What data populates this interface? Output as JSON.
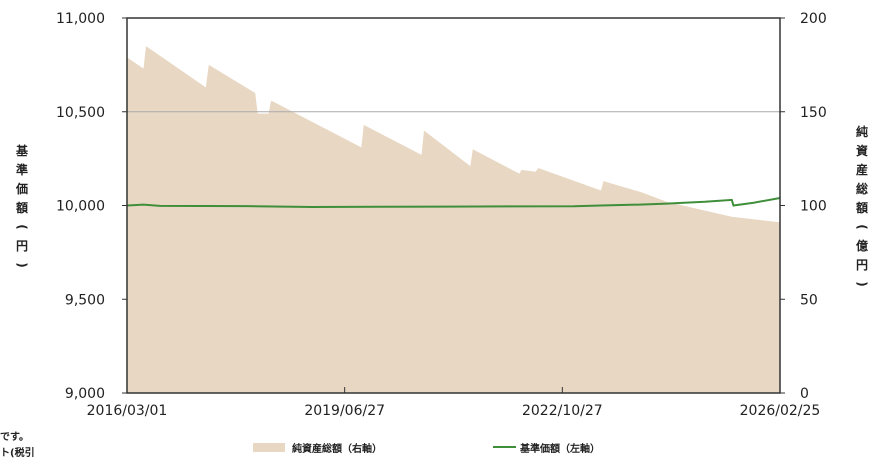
{
  "chart_data": {
    "type": "area+line",
    "x_start": "2016/03/01",
    "x_end": "2026/02/25",
    "x_tick_labels": [
      "2016/03/01",
      "2019/06/27",
      "2022/10/27",
      "2026/02/25"
    ],
    "left_axis": {
      "label": "基準価額(円)",
      "ylim": [
        9000,
        11000
      ],
      "ticks": [
        9000,
        9500,
        10000,
        10500,
        11000
      ],
      "tick_labels": [
        "9,000",
        "9,500",
        "10,000",
        "10,500",
        "11,000"
      ]
    },
    "right_axis": {
      "label": "純資産総額(億円)",
      "ylim": [
        0,
        200
      ],
      "ticks": [
        0,
        50,
        100,
        150,
        200
      ],
      "tick_labels": [
        "0",
        "50",
        "100",
        "150",
        "200"
      ]
    },
    "grid": {
      "horizontal_line_at_right": 150
    },
    "legend": {
      "placement": "bottom",
      "entries": [
        {
          "label": "純資産総額（右軸）",
          "kind": "area",
          "color": "#e8d7c3"
        },
        {
          "label": "基準価額（左軸）",
          "kind": "line",
          "color": "#3f8f3a"
        }
      ]
    },
    "series": [
      {
        "name": "純資産総額（右軸）",
        "axis": "right",
        "kind": "area",
        "color": "#e8d7c3",
        "points": [
          {
            "x": "2016/03/01",
            "y": 179
          },
          {
            "x": "2016/06/01",
            "y": 173
          },
          {
            "x": "2016/06/15",
            "y": 185
          },
          {
            "x": "2017/05/15",
            "y": 163
          },
          {
            "x": "2017/06/01",
            "y": 175
          },
          {
            "x": "2018/02/15",
            "y": 160
          },
          {
            "x": "2018/03/01",
            "y": 149
          },
          {
            "x": "2018/05/01",
            "y": 149
          },
          {
            "x": "2018/05/15",
            "y": 156
          },
          {
            "x": "2019/10/01",
            "y": 131
          },
          {
            "x": "2019/10/15",
            "y": 143
          },
          {
            "x": "2020/09/01",
            "y": 127
          },
          {
            "x": "2020/09/15",
            "y": 140
          },
          {
            "x": "2021/06/01",
            "y": 121
          },
          {
            "x": "2021/06/15",
            "y": 130
          },
          {
            "x": "2022/03/01",
            "y": 117
          },
          {
            "x": "2022/03/15",
            "y": 119
          },
          {
            "x": "2022/06/01",
            "y": 118
          },
          {
            "x": "2022/06/15",
            "y": 120
          },
          {
            "x": "2023/06/01",
            "y": 108
          },
          {
            "x": "2023/06/15",
            "y": 113
          },
          {
            "x": "2024/01/15",
            "y": 107
          },
          {
            "x": "2024/06/01",
            "y": 102
          },
          {
            "x": "2025/03/01",
            "y": 96
          },
          {
            "x": "2025/06/01",
            "y": 94
          },
          {
            "x": "2026/02/25",
            "y": 91
          }
        ]
      },
      {
        "name": "基準価額（左軸）",
        "axis": "left",
        "kind": "line",
        "color": "#3f8f3a",
        "points": [
          {
            "x": "2016/03/01",
            "y": 10000
          },
          {
            "x": "2016/06/01",
            "y": 10005
          },
          {
            "x": "2016/09/01",
            "y": 9998
          },
          {
            "x": "2018/01/01",
            "y": 9997
          },
          {
            "x": "2019/01/01",
            "y": 9992
          },
          {
            "x": "2020/01/01",
            "y": 9993
          },
          {
            "x": "2021/01/01",
            "y": 9994
          },
          {
            "x": "2022/01/01",
            "y": 9995
          },
          {
            "x": "2023/01/01",
            "y": 9996
          },
          {
            "x": "2023/06/01",
            "y": 10000
          },
          {
            "x": "2024/01/01",
            "y": 10005
          },
          {
            "x": "2024/06/01",
            "y": 10010
          },
          {
            "x": "2025/01/01",
            "y": 10020
          },
          {
            "x": "2025/06/01",
            "y": 10030
          },
          {
            "x": "2025/06/10",
            "y": 10000
          },
          {
            "x": "2025/10/01",
            "y": 10015
          },
          {
            "x": "2026/02/25",
            "y": 10040
          }
        ]
      }
    ]
  },
  "clipped_text": {
    "top_right": "",
    "bottom_left_line1": "です。",
    "bottom_left_line2": "ト(税引"
  }
}
